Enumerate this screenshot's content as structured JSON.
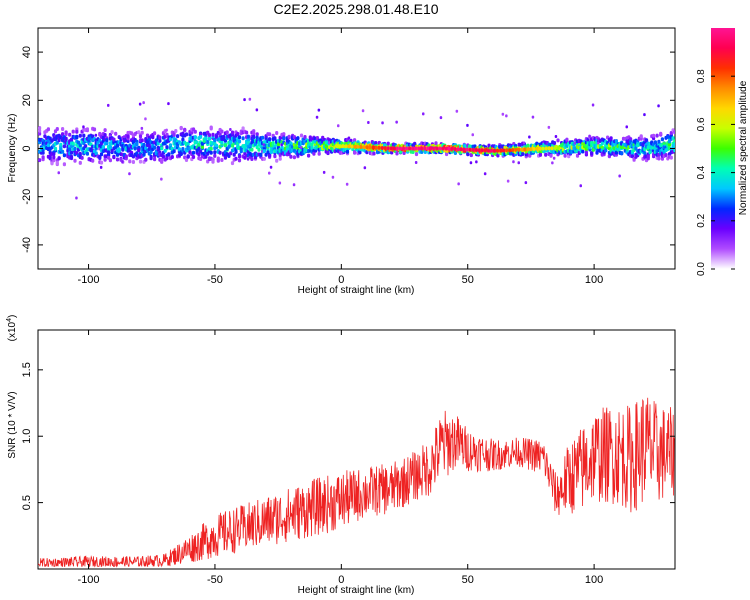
{
  "title": "C2E2.2025.298.01.48.E10",
  "chart_data": [
    {
      "type": "heatmap",
      "xlabel": "Height of straight line (km)",
      "ylabel": "Frequency (Hz)",
      "xlim": [
        -120,
        132
      ],
      "ylim": [
        -50,
        50
      ],
      "xticks": [
        -100,
        -50,
        0,
        50,
        100
      ],
      "yticks": [
        -40,
        -20,
        0,
        20,
        40
      ],
      "colorbar": {
        "label": "Normalized spectral amplitude",
        "range": [
          0,
          1
        ],
        "ticks": [
          "0.0",
          "0.2",
          "0.4",
          "0.6",
          "0.8"
        ],
        "colors": [
          "#ffffff",
          "#b04cff",
          "#6a00ff",
          "#0028ff",
          "#00c8ff",
          "#00ffb4",
          "#3cff00",
          "#c8ff00",
          "#ffd700",
          "#ff8c00",
          "#ff3000",
          "#ff0050",
          "#ff1493"
        ]
      },
      "profile": {
        "x": [
          -120,
          -100,
          -80,
          -60,
          -40,
          -20,
          0,
          20,
          40,
          60,
          80,
          100,
          120,
          132
        ],
        "peak_amplitude": [
          0.35,
          0.38,
          0.32,
          0.45,
          0.42,
          0.5,
          0.62,
          0.95,
          0.98,
          0.9,
          0.62,
          0.55,
          0.42,
          0.48
        ],
        "width_hz": [
          8,
          8,
          7,
          7,
          7,
          5,
          3,
          2,
          2,
          2,
          3,
          4,
          5,
          6
        ],
        "center_hz": [
          1,
          1,
          0,
          2,
          1,
          1,
          1,
          0,
          0,
          -1,
          0,
          1,
          0,
          2
        ]
      }
    },
    {
      "type": "line",
      "xlabel": "Height of straight line (km)",
      "ylabel": "SNR (10 * V/V)",
      "yscale_label": "(x10",
      "yscale_exp": "4",
      "yscale_close": ")",
      "xlim": [
        -120,
        132
      ],
      "ylim": [
        0,
        18000
      ],
      "xticks": [
        -100,
        -50,
        0,
        50,
        100
      ],
      "yticks": [
        0.5,
        1.0,
        1.5
      ],
      "ytick_labels": [
        "0.5",
        "1.0",
        "1.5"
      ],
      "color": "#ee2222",
      "envelope": {
        "x": [
          -120,
          -100,
          -80,
          -70,
          -60,
          -50,
          -40,
          -30,
          -20,
          -10,
          0,
          10,
          20,
          30,
          35,
          40,
          45,
          50,
          60,
          70,
          80,
          85,
          90,
          95,
          100,
          110,
          115,
          120,
          125,
          132
        ],
        "base": [
          300,
          400,
          400,
          500,
          1200,
          2000,
          2500,
          3000,
          3500,
          4000,
          4500,
          5200,
          5500,
          6500,
          7000,
          8500,
          9000,
          8500,
          8200,
          8500,
          8000,
          5000,
          6000,
          6500,
          7500,
          7500,
          7000,
          8000,
          7500,
          7800
        ],
        "amplitude": [
          700,
          800,
          800,
          900,
          2000,
          3000,
          3200,
          3500,
          3800,
          4000,
          4000,
          3500,
          3500,
          3500,
          4000,
          5000,
          4000,
          3000,
          2200,
          2000,
          2500,
          3000,
          5000,
          6000,
          6500,
          7000,
          7500,
          8000,
          7000,
          6000
        ]
      }
    }
  ]
}
